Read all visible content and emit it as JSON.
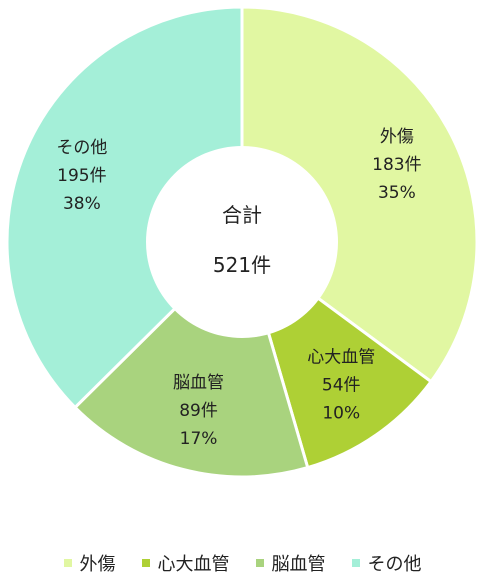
{
  "chart_data": {
    "type": "pie",
    "donut": true,
    "categories": [
      "外傷",
      "心大血管",
      "脳血管",
      "その他"
    ],
    "counts": [
      183,
      54,
      89,
      195
    ],
    "count_labels": [
      "183件",
      "54件",
      "89件",
      "195件"
    ],
    "percent_labels": [
      "35%",
      "10%",
      "17%",
      "38%"
    ],
    "colors": [
      "#e1f7a2",
      "#aed035",
      "#a9d37e",
      "#a4efd8"
    ],
    "center": {
      "title": "合計",
      "value": "521件"
    },
    "legend_position": "bottom"
  }
}
